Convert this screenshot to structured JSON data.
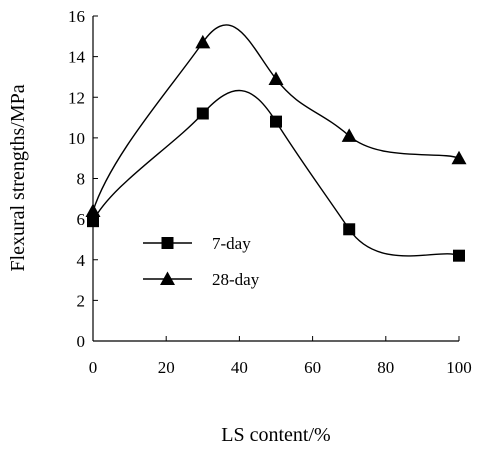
{
  "chart_data": {
    "type": "line",
    "title": "",
    "xlabel": "LS content/%",
    "ylabel": "Flexural strengths/MPa",
    "xlim": [
      0,
      100
    ],
    "ylim": [
      0,
      16
    ],
    "xticks": [
      0,
      20,
      40,
      60,
      80,
      100
    ],
    "yticks": [
      0,
      2,
      4,
      6,
      8,
      10,
      12,
      14,
      16
    ],
    "grid": false,
    "legend_position": "center-left",
    "smooth": true,
    "x": [
      0,
      30,
      50,
      70,
      100
    ],
    "series": [
      {
        "name": "7-day",
        "marker": "square",
        "values": [
          5.9,
          11.2,
          10.8,
          5.5,
          4.2
        ]
      },
      {
        "name": "28-day",
        "marker": "triangle",
        "values": [
          6.4,
          14.7,
          12.9,
          10.1,
          9.0
        ]
      }
    ]
  }
}
